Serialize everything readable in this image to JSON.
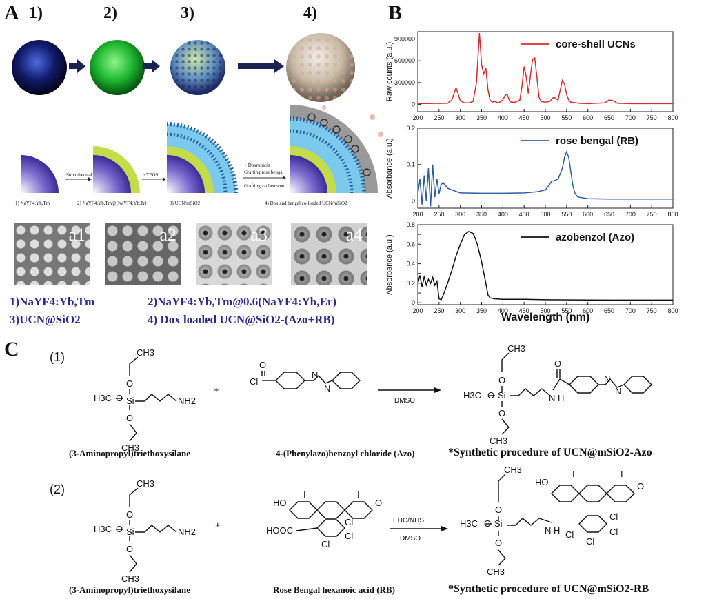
{
  "panelA": {
    "letter": "A",
    "steps": [
      "1)",
      "2)",
      "3)",
      "4)"
    ],
    "process": {
      "arrow1": "Solvothermal",
      "arrow2": "+TEOS",
      "arrow3_lines": [
        "+ Doxrubicin",
        "Grafting rose bengal",
        "Grafting azobenzene"
      ],
      "captions": [
        "1) NaYF4:Yb,Tm",
        "2) NaYF4:Yb,Tm@(NaYF4:Yb,Tr)",
        "3) UCN/mSiO2",
        "4) Dox and bengal co-loaded UCN/mSiO2"
      ]
    },
    "tem_labels": [
      "a1",
      "a2",
      "a3",
      "a4"
    ],
    "legend": {
      "l1": "1)NaYF4:Yb,Tm",
      "l2": "2)NaYF4:Yb,Tm@0.6(NaYF4:Yb,Er)",
      "l3": "3)UCN@SiO2",
      "l4": "4) Dox loaded UCN@SiO2-(Azo+RB)"
    }
  },
  "panelB": {
    "letter": "B",
    "xlabel": "Wavelength (nm)",
    "colors": {
      "ucn": "#d62c2c",
      "rb": "#2b5ca8",
      "azo": "#111111"
    }
  },
  "chart_data": [
    {
      "type": "line",
      "ylabel": "Raw counts (a.u.)",
      "xlim": [
        200,
        800
      ],
      "ylim": [
        -100000,
        1000000
      ],
      "yticks": [
        0,
        300000,
        600000,
        900000
      ],
      "xticks": [
        200,
        250,
        300,
        350,
        400,
        450,
        500,
        550,
        600,
        650,
        700,
        750,
        800
      ],
      "series": [
        {
          "name": "core-shell UCNs",
          "color": "#d62c2c",
          "x": [
            200,
            270,
            280,
            290,
            300,
            310,
            320,
            330,
            338,
            345,
            350,
            355,
            360,
            365,
            370,
            375,
            380,
            390,
            400,
            405,
            410,
            415,
            420,
            430,
            440,
            445,
            450,
            455,
            460,
            465,
            470,
            475,
            480,
            485,
            490,
            500,
            510,
            520,
            525,
            530,
            535,
            540,
            545,
            550,
            555,
            560,
            580,
            600,
            640,
            650,
            660,
            670,
            700,
            800
          ],
          "y": [
            10000,
            15000,
            60000,
            230000,
            50000,
            20000,
            20000,
            40000,
            300000,
            980000,
            550000,
            420000,
            500000,
            200000,
            60000,
            30000,
            40000,
            20000,
            60000,
            120000,
            140000,
            60000,
            30000,
            30000,
            60000,
            250000,
            520000,
            380000,
            150000,
            400000,
            620000,
            640000,
            380000,
            100000,
            40000,
            30000,
            40000,
            100000,
            80000,
            60000,
            200000,
            330000,
            280000,
            140000,
            60000,
            30000,
            15000,
            10000,
            20000,
            60000,
            50000,
            15000,
            10000,
            10000
          ]
        }
      ]
    },
    {
      "type": "line",
      "ylabel": "Absorbance (a.u.)",
      "xlim": [
        200,
        800
      ],
      "ylim": [
        -0.02,
        0.2
      ],
      "yticks": [
        0.0,
        0.1,
        0.2
      ],
      "xticks": [
        200,
        250,
        300,
        350,
        400,
        450,
        500,
        550,
        600,
        650,
        700,
        750,
        800
      ],
      "series": [
        {
          "name": "rose bengal (RB)",
          "color": "#2b5ca8",
          "x": [
            200,
            205,
            210,
            215,
            220,
            225,
            230,
            235,
            240,
            245,
            250,
            255,
            260,
            270,
            280,
            300,
            350,
            400,
            450,
            480,
            500,
            510,
            515,
            520,
            530,
            540,
            545,
            550,
            555,
            560,
            565,
            570,
            575,
            580,
            600,
            650,
            700,
            800
          ],
          "y": [
            0.02,
            0.06,
            -0.01,
            0.07,
            0.0,
            0.09,
            -0.015,
            0.1,
            0.01,
            0.06,
            0.02,
            0.045,
            0.05,
            0.035,
            0.03,
            0.022,
            0.021,
            0.021,
            0.022,
            0.025,
            0.03,
            0.045,
            0.055,
            0.055,
            0.06,
            0.09,
            0.12,
            0.135,
            0.12,
            0.08,
            0.04,
            0.02,
            0.012,
            0.01,
            0.006,
            0.005,
            0.005,
            0.005
          ]
        }
      ]
    },
    {
      "type": "line",
      "ylabel": "Absorbance (a.u.)",
      "xlim": [
        200,
        800
      ],
      "ylim": [
        -0.02,
        0.8
      ],
      "yticks": [
        0.0,
        0.1,
        0.2,
        0.3,
        0.4,
        0.5,
        0.6,
        0.7,
        0.8
      ],
      "xticks": [
        200,
        250,
        300,
        350,
        400,
        450,
        500,
        550,
        600,
        650,
        700,
        750,
        800
      ],
      "series": [
        {
          "name": "azobenzol (Azo)",
          "color": "#111111",
          "x": [
            200,
            205,
            210,
            215,
            220,
            225,
            230,
            235,
            240,
            245,
            250,
            255,
            260,
            270,
            280,
            290,
            300,
            310,
            320,
            330,
            335,
            340,
            350,
            360,
            365,
            370,
            380,
            400,
            450,
            500,
            600,
            700,
            800
          ],
          "y": [
            0.2,
            0.28,
            0.16,
            0.27,
            0.18,
            0.24,
            0.2,
            0.26,
            0.18,
            0.22,
            0.04,
            0.03,
            0.08,
            0.2,
            0.33,
            0.48,
            0.6,
            0.7,
            0.73,
            0.71,
            0.66,
            0.6,
            0.42,
            0.2,
            0.08,
            0.05,
            0.04,
            0.035,
            0.035,
            0.03,
            0.028,
            0.027,
            0.027
          ]
        }
      ]
    }
  ],
  "panelC": {
    "letter": "C",
    "r1": {
      "num": "(1)",
      "reagent1_name": "(3-Aminopropyl)triethoxysilane",
      "reagent2_name": "4-(Phenylazo)benzoyl chloride (Azo)",
      "condition": "DMSO",
      "product_title": "*Synthetic procedure of UCN@mSiO2-Azo"
    },
    "r2": {
      "num": "(2)",
      "reagent1_name": "(3-Aminopropyl)triethoxysilane",
      "reagent2_name": "Rose Bengal hexanoic acid (RB)",
      "condition1": "EDC/NHS",
      "condition2": "DMSO",
      "product_title": "*Synthetic procedure of UCN@mSiO2-RB"
    },
    "atoms": {
      "ch3": "CH3",
      "h3c": "H3C",
      "o": "O",
      "si": "Si",
      "nh2": "NH2",
      "plus": "+",
      "cl": "Cl",
      "n": "N",
      "nh": "N H",
      "ho": "HO",
      "hooc": "HOOC",
      "i": "I"
    }
  }
}
